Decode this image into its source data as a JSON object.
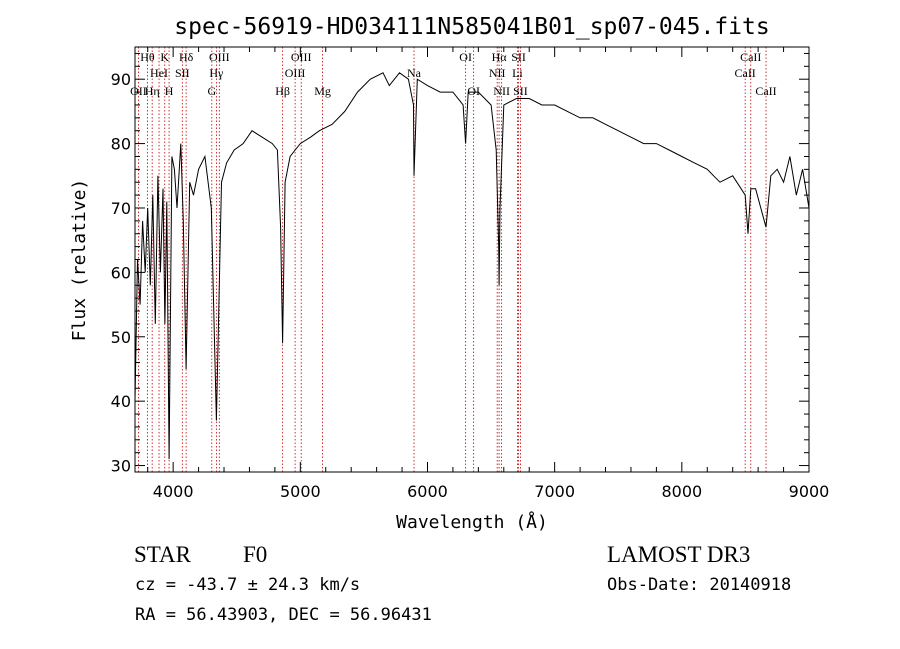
{
  "chart_data": {
    "type": "line",
    "title": "spec-56919-HD034111N585041B01_sp07-045.fits",
    "xlabel": "Wavelength (Å)",
    "ylabel": "Flux (relative)",
    "xlim": [
      3700,
      9000
    ],
    "ylim": [
      29,
      95
    ],
    "xticks": [
      4000,
      5000,
      6000,
      7000,
      8000,
      9000
    ],
    "yticks": [
      30,
      40,
      50,
      60,
      70,
      80,
      90
    ],
    "grid": false,
    "series": [
      {
        "name": "spectrum",
        "x": [
          3700,
          3720,
          3740,
          3760,
          3780,
          3800,
          3820,
          3840,
          3860,
          3880,
          3900,
          3920,
          3935,
          3950,
          3968,
          3990,
          4010,
          4030,
          4060,
          4080,
          4102,
          4130,
          4160,
          4200,
          4250,
          4300,
          4340,
          4380,
          4420,
          4480,
          4550,
          4620,
          4700,
          4780,
          4820,
          4845,
          4861,
          4880,
          4920,
          4960,
          5000,
          5080,
          5150,
          5250,
          5350,
          5450,
          5550,
          5650,
          5700,
          5780,
          5850,
          5890,
          5894,
          5920,
          6000,
          6100,
          6200,
          6280,
          6300,
          6320,
          6400,
          6500,
          6540,
          6560,
          6563,
          6570,
          6600,
          6700,
          6800,
          6900,
          7000,
          7100,
          7200,
          7300,
          7400,
          7500,
          7600,
          7700,
          7800,
          7900,
          8000,
          8100,
          8200,
          8250,
          8300,
          8400,
          8498,
          8520,
          8542,
          8580,
          8662,
          8700,
          8750,
          8800,
          8850,
          8900,
          8950,
          9000
        ],
        "y": [
          40,
          62,
          55,
          68,
          60,
          70,
          58,
          72,
          52,
          75,
          60,
          73,
          52,
          71,
          31,
          78,
          76,
          70,
          80,
          68,
          45,
          74,
          72,
          76,
          78,
          70,
          37,
          74,
          77,
          79,
          80,
          82,
          81,
          80,
          79,
          67,
          49,
          74,
          78,
          79,
          80,
          81,
          82,
          83,
          85,
          88,
          90,
          91,
          89,
          91,
          90,
          86,
          75,
          90,
          89,
          88,
          88,
          86,
          80,
          88,
          88,
          86,
          79,
          64,
          58,
          70,
          86,
          87,
          87,
          86,
          86,
          85,
          84,
          84,
          83,
          82,
          81,
          80,
          80,
          79,
          78,
          77,
          76,
          75,
          74,
          75,
          72,
          66,
          73,
          73,
          67,
          75,
          76,
          74,
          78,
          72,
          76,
          70
        ]
      }
    ],
    "lines": [
      {
        "name": "O II",
        "wavelength": 3727,
        "label": "OII",
        "row": 3
      },
      {
        "name": "H theta",
        "wavelength": 3798,
        "label": "Hθ",
        "row": 1
      },
      {
        "name": "H eta",
        "wavelength": 3835,
        "label": "Hη",
        "row": 3
      },
      {
        "name": "He I",
        "wavelength": 3889,
        "label": "HeI",
        "row": 2
      },
      {
        "name": "Ca II K",
        "wavelength": 3934,
        "label": "K",
        "row": 1
      },
      {
        "name": "Ca II H",
        "wavelength": 3968,
        "label": "H",
        "row": 3
      },
      {
        "name": "S II",
        "wavelength": 4072,
        "label": "SII",
        "row": 2
      },
      {
        "name": "H delta",
        "wavelength": 4102,
        "label": "Hδ",
        "row": 1
      },
      {
        "name": "G band",
        "wavelength": 4304,
        "label": "G",
        "row": 3
      },
      {
        "name": "H gamma",
        "wavelength": 4340,
        "label": "Hγ",
        "row": 2
      },
      {
        "name": "O III 4363",
        "wavelength": 4363,
        "label": "OIII",
        "row": 1
      },
      {
        "name": "H beta",
        "wavelength": 4861,
        "label": "Hβ",
        "row": 3
      },
      {
        "name": "O III 4959",
        "wavelength": 4959,
        "label": "OIII",
        "row": 2
      },
      {
        "name": "O III 5007",
        "wavelength": 5007,
        "label": "OIII",
        "row": 1
      },
      {
        "name": "Mg",
        "wavelength": 5175,
        "label": "Mg",
        "row": 3
      },
      {
        "name": "Na",
        "wavelength": 5894,
        "label": "Na",
        "row": 2
      },
      {
        "name": "O I 6300",
        "wavelength": 6300,
        "label": "OI",
        "row": 1
      },
      {
        "name": "O I 6363",
        "wavelength": 6363,
        "label": "OI",
        "row": 3
      },
      {
        "name": "N II 6548",
        "wavelength": 6548,
        "label": "NII",
        "row": 2
      },
      {
        "name": "H alpha",
        "wavelength": 6563,
        "label": "Hα",
        "row": 1
      },
      {
        "name": "N II 6583",
        "wavelength": 6583,
        "label": "NII",
        "row": 3
      },
      {
        "name": "Li",
        "wavelength": 6707,
        "label": "Li",
        "row": 2
      },
      {
        "name": "S II 6716",
        "wavelength": 6716,
        "label": "SII",
        "row": 1
      },
      {
        "name": "S II 6731",
        "wavelength": 6731,
        "label": "SII",
        "row": 3
      },
      {
        "name": "Ca II 8498",
        "wavelength": 8498,
        "label": "CaII",
        "row": 2
      },
      {
        "name": "Ca II 8542",
        "wavelength": 8542,
        "label": "CaII",
        "row": 1
      },
      {
        "name": "Ca II 8662",
        "wavelength": 8662,
        "label": "CaII",
        "row": 3
      }
    ],
    "line_color": "#c00000",
    "spectrum_color": "#000000"
  },
  "info": {
    "class_label": "STAR",
    "subclass": "F0",
    "cz": "cz = -43.7 ± 24.3 km/s",
    "radec": "RA =  56.43903, DEC =  56.96431",
    "survey": "LAMOST DR3",
    "obs_date": "Obs-Date: 20140918"
  }
}
